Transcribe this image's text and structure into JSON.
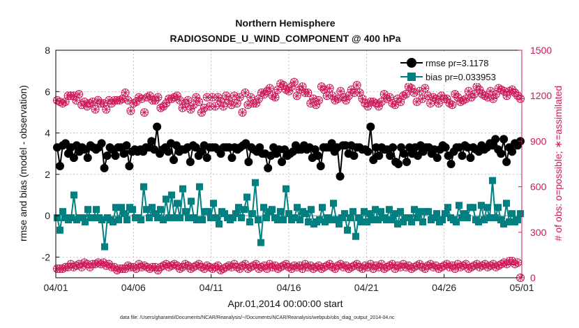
{
  "chart_data": {
    "type": "line",
    "title": "Northern Hemisphere",
    "subtitle": "RADIOSONDE_U_WIND_COMPONENT @ 400 hPa",
    "xlabel": "Apr.01,2014 00:00:00 start",
    "ylabel": "rmse and bias (model - observation)",
    "ylabel_right": "# of obs: o=possible; ∗=assimilated",
    "xticks": [
      "04/01",
      "04/06",
      "04/11",
      "04/16",
      "04/21",
      "04/26",
      "05/01"
    ],
    "yticks": [
      -2,
      0,
      2,
      4,
      6,
      8
    ],
    "yticks_right": [
      0,
      300,
      600,
      900,
      1200,
      1500
    ],
    "ylim": [
      -3,
      8
    ],
    "ylim_right": [
      0,
      1500
    ],
    "xlim": [
      0,
      30
    ],
    "footnote": "data file: /Users/gharamti/Documents/NCAR/Reanalysis/~/Documents/NCAR/Reanalysis/webpub/obs_diag_output_2014-04.nc",
    "legend": [
      {
        "label": "rmse pr=3.1178",
        "color": "#000000",
        "marker": "circle"
      },
      {
        "label": "bias pr=0.033953",
        "color": "#008080",
        "marker": "square"
      }
    ],
    "colors": {
      "rmse": "#000000",
      "bias": "#008080",
      "obs": "#cc1a5a",
      "zero": "#aaaaaa"
    },
    "series": [
      {
        "name": "rmse",
        "axis": "left",
        "values": [
          3.3,
          2.4,
          3.4,
          3.5,
          3.0,
          3.3,
          2.8,
          3.4,
          3.1,
          3.3,
          3.2,
          2.8,
          3.4,
          3.3,
          3.2,
          3.3,
          3.5,
          2.3,
          2.9,
          3.3,
          3.2,
          2.9,
          3.3,
          3.3,
          3.0,
          3.4,
          2.4,
          3.1,
          3.2,
          3.1,
          3.2,
          3.1,
          3.3,
          3.3,
          3.6,
          3.2,
          4.3,
          3.0,
          3.2,
          3.3,
          3.1,
          3.5,
          2.7,
          3.4,
          3.1,
          3.2,
          3.2,
          3.3,
          2.6,
          3.4,
          3.3,
          2.9,
          3.1,
          3.4,
          2.8,
          3.3,
          3.3,
          3.3,
          3.2,
          3.0,
          3.3,
          3.3,
          3.3,
          2.8,
          3.3,
          3.2,
          3.3,
          3.4,
          3.5,
          2.6,
          3.3,
          3.2,
          3.1,
          3.3,
          3.0,
          3.0,
          2.3,
          2.9,
          3.3,
          3.0,
          3.2,
          2.6,
          3.2,
          2.9,
          3.0,
          3.1,
          3.4,
          3.2,
          3.2,
          3.4,
          3.2,
          3.3,
          2.8,
          3.2,
          2.9,
          2.4,
          3.3,
          3.3,
          3.3,
          3.5,
          3.1,
          3.3,
          1.9,
          3.4,
          3.4,
          3.0,
          3.4,
          2.9,
          3.3,
          3.3,
          3.2,
          3.2,
          3.1,
          4.3,
          2.7,
          3.3,
          2.9,
          3.3,
          3.2,
          3.2,
          2.9,
          3.3,
          2.6,
          2.5,
          3.3,
          3.0,
          2.6,
          3.3,
          3.0,
          3.3,
          2.9,
          3.4,
          3.1,
          3.3,
          3.3,
          3.0,
          3.2,
          2.8,
          3.2,
          3.4,
          3.3,
          2.9,
          2.5,
          3.1,
          3.3,
          3.3,
          2.9,
          3.4,
          3.3,
          2.8,
          3.3,
          3.2,
          3.1,
          3.4,
          3.2,
          3.3,
          3.5,
          3.4,
          3.7,
          3.2,
          3.0,
          3.7,
          2.6,
          3.3,
          3.1,
          3.5,
          3.4,
          3.6
        ]
      },
      {
        "name": "bias",
        "axis": "left",
        "values": [
          -0.1,
          -0.7,
          0.2,
          -0.1,
          -0.2,
          -0.1,
          1.0,
          -0.2,
          -0.1,
          -0.1,
          -0.3,
          0.3,
          -0.1,
          -0.1,
          0.3,
          -0.1,
          -0.2,
          -1.5,
          -0.1,
          -0.2,
          -0.3,
          0.4,
          -0.2,
          0.4,
          0.1,
          -0.2,
          0.4,
          0.3,
          -0.1,
          -0.1,
          -0.2,
          1.4,
          0.3,
          -0.1,
          0.4,
          0.1,
          -0.1,
          0.3,
          -0.2,
          0.8,
          -0.1,
          1.0,
          -0.1,
          0.6,
          -0.1,
          1.3,
          0.2,
          -0.1,
          0.7,
          -0.1,
          -0.2,
          1.4,
          -0.2,
          0.2,
          0.2,
          -0.1,
          0.6,
          -0.1,
          -0.4,
          0.2,
          0.1,
          -0.1,
          -0.2,
          -0.1,
          0.1,
          0.4,
          -0.1,
          0.3,
          0.9,
          -0.3,
          0.1,
          1.6,
          -0.2,
          -1.3,
          0.4,
          -0.1,
          0.2,
          0.3,
          -0.1,
          -0.2,
          0.2,
          -0.2,
          1.3,
          0.1,
          -0.2,
          -0.1,
          0.4,
          -0.2,
          0.2,
          0.1,
          -0.3,
          0.3,
          -0.4,
          -0.3,
          -0.2,
          0.4,
          -0.3,
          -0.1,
          -0.2,
          0.6,
          -0.2,
          -0.4,
          -0.1,
          0.1,
          -0.7,
          -0.1,
          0.2,
          -1.0,
          -0.1,
          -0.3,
          0.2,
          -0.3,
          0.1,
          -0.2,
          0.3,
          -0.2,
          0.2,
          -0.1,
          -0.2,
          0.3,
          -0.2,
          0.1,
          -0.4,
          0.2,
          -0.3,
          -0.1,
          -0.1,
          -0.3,
          0.3,
          -0.1,
          0.2,
          -0.3,
          0.2,
          0.2,
          -0.2,
          -0.1,
          0.1,
          -0.3,
          -0.2,
          0.1,
          0.4,
          -0.1,
          -0.2,
          -0.3,
          0.5,
          -0.1,
          0.1,
          -0.1,
          0.4,
          0.4,
          -0.2,
          -0.3,
          0.5,
          -0.2,
          0.4,
          -0.1,
          1.7,
          -0.1,
          0.4,
          -0.2,
          -0.4,
          0.6,
          -0.3,
          0.1,
          -0.3,
          -0.2,
          0.1
        ]
      },
      {
        "name": "obs_possible",
        "axis": "right",
        "values": [
          1170,
          1160,
          1150,
          1160,
          1200,
          1200,
          1200,
          1170,
          1210,
          1140,
          1160,
          1130,
          1150,
          1160,
          1110,
          1170,
          1150,
          1150,
          1110,
          1170,
          1150,
          1170,
          1170,
          1170,
          1180,
          1220,
          1170,
          1100,
          1150,
          1160,
          1190,
          1180,
          1090,
          1190,
          1200,
          1170,
          1170,
          1190,
          1120,
          1130,
          1150,
          1180,
          1180,
          1190,
          1200,
          1170,
          1120,
          1150,
          1170,
          1110,
          1140,
          1190,
          1160,
          1090,
          1120,
          1190,
          1130,
          1190,
          1130,
          1190,
          1160,
          1130,
          1200,
          1170,
          1140,
          1200,
          1150,
          1190,
          1090,
          1220,
          1140,
          1190,
          1150,
          1150,
          1180,
          1220,
          1210,
          1230,
          1250,
          1200,
          1190,
          1240,
          1280,
          1270,
          1240,
          1230,
          1260,
          1290,
          1200,
          1240,
          1260,
          1220,
          1220,
          1150,
          1180,
          1140,
          1170,
          1260,
          1240,
          1200,
          1250,
          1200,
          1170,
          1180,
          1230,
          1190,
          1170,
          1200,
          1240,
          1220,
          1270,
          1220,
          1180,
          1150,
          1130,
          1160,
          1160,
          1150,
          1130,
          1160,
          1210,
          1180,
          1190,
          1150,
          1140,
          1180,
          1160,
          1200,
          1210,
          1260,
          1250,
          1220,
          1160,
          1230,
          1180,
          1250,
          1200,
          1150,
          1190,
          1180,
          1150,
          1200,
          1180,
          1180,
          1150,
          1140,
          1210,
          1190,
          1160,
          1170,
          1180,
          1230,
          1190,
          1210,
          1260,
          1240,
          1210,
          1200,
          1190,
          1230,
          1180,
          1210,
          1250,
          1240,
          1230,
          1200,
          1230,
          1240,
          1220,
          1200,
          1180
        ]
      },
      {
        "name": "obs_assimilated",
        "axis": "right",
        "values": [
          60,
          60,
          60,
          70,
          70,
          90,
          70,
          80,
          90,
          70,
          100,
          90,
          70,
          90,
          90,
          100,
          90,
          100,
          80,
          90,
          70,
          70,
          50,
          60,
          60,
          60,
          80,
          70,
          70,
          60,
          90,
          70,
          80,
          70,
          60,
          70,
          70,
          50,
          70,
          80,
          90,
          70,
          80,
          90,
          80,
          60,
          70,
          90,
          80,
          60,
          70,
          80,
          90,
          70,
          60,
          80,
          70,
          60,
          70,
          80,
          50,
          60,
          70,
          80,
          70,
          90,
          70,
          60,
          80,
          90,
          60,
          70,
          80,
          90,
          60,
          70,
          80,
          60,
          90,
          70,
          80,
          60,
          70,
          80,
          90,
          70,
          60,
          80,
          70,
          80,
          60,
          90,
          70,
          80,
          60,
          70,
          80,
          60,
          70,
          80,
          90,
          70,
          60,
          80,
          90,
          70,
          80,
          60,
          70,
          80,
          90,
          70,
          60,
          80,
          70,
          90,
          60,
          80,
          70,
          90,
          60,
          70,
          80,
          90,
          60,
          80,
          70,
          90,
          70,
          80,
          60,
          70,
          80,
          90,
          70,
          60,
          80,
          90,
          70,
          80,
          60,
          70,
          80,
          90,
          70,
          80,
          60,
          90,
          70,
          80,
          90,
          60,
          70,
          80,
          90,
          70,
          80,
          90,
          70,
          80,
          90,
          70,
          80,
          90,
          100,
          90,
          110,
          110,
          90,
          100,
          0
        ]
      }
    ]
  }
}
